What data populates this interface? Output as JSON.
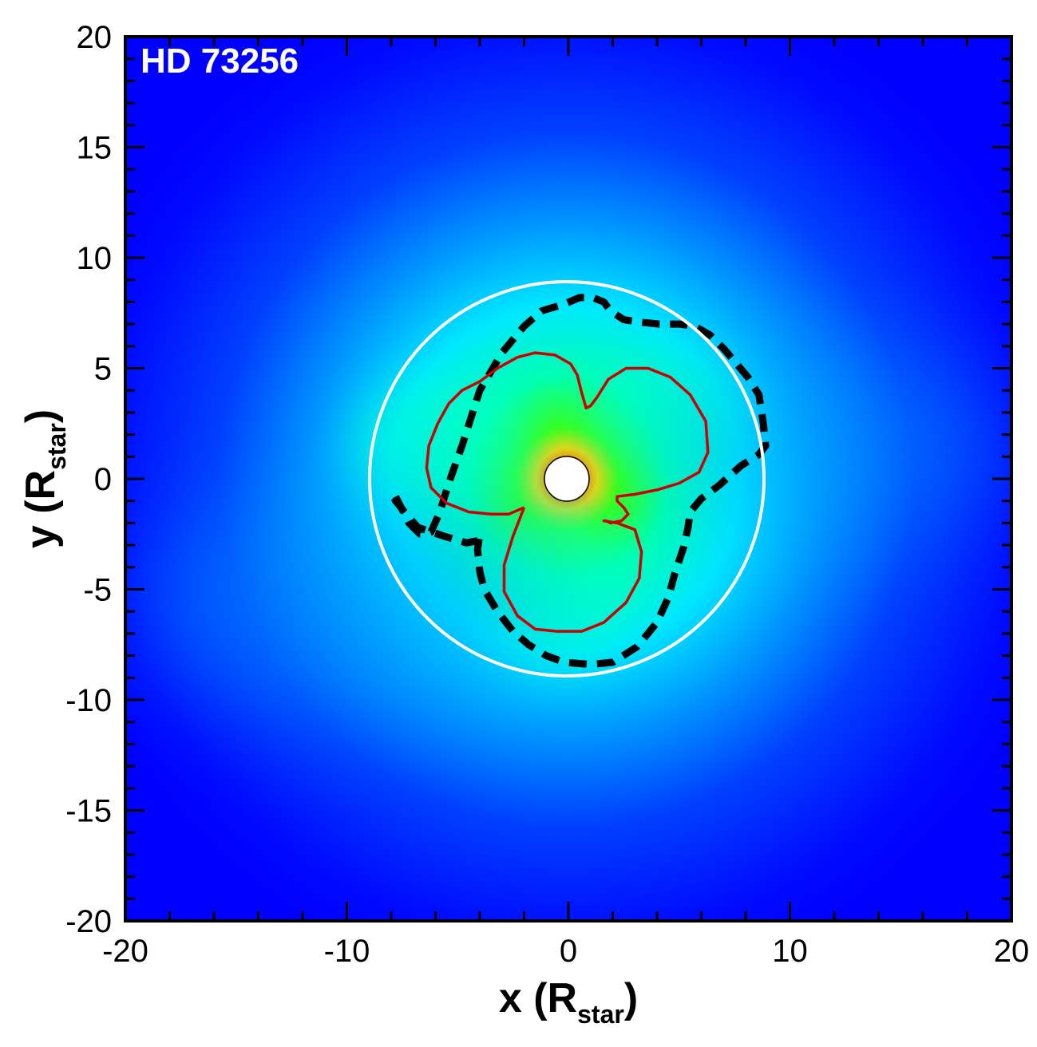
{
  "chart_data": {
    "type": "contour",
    "label": "HD 73256",
    "xlabel": {
      "main": "x (R",
      "sub": "star",
      "close": ")"
    },
    "ylabel": {
      "main": "y (R",
      "sub": "star",
      "close": ")"
    },
    "xlim": [
      -20,
      20
    ],
    "ylim": [
      -20,
      20
    ],
    "xticks": [
      -20,
      -10,
      0,
      10,
      20
    ],
    "yticks": [
      -20,
      -15,
      -10,
      -5,
      0,
      5,
      10,
      15,
      20
    ],
    "xtick_labels": [
      "-20",
      "-10",
      "0",
      "10",
      "20"
    ],
    "ytick_labels": [
      "-20",
      "-15",
      "-10",
      "-5",
      "0",
      "5",
      "10",
      "15",
      "20"
    ],
    "star_radius": 1,
    "planet_orbit_radius": 8.9,
    "colormap": [
      "#0000ff",
      "#00ffff",
      "#00ff00",
      "#ffff00",
      "#ff0000"
    ],
    "series": [
      {
        "style": "dashed",
        "color": "#000000",
        "x": [
          -7.8,
          -7.2,
          -6.8,
          -6.7,
          -6.5,
          -6.2,
          -5.8,
          -5.4,
          -4.8,
          -4.0,
          -3.0,
          -2.0,
          -1.2,
          -0.2,
          0.5,
          1.1,
          1.6,
          1.9,
          2.5,
          3.1,
          4.1,
          5.0,
          5.7,
          6.4,
          7.0,
          7.6,
          8.1,
          8.6,
          8.8,
          8.9,
          8.6,
          7.8,
          6.8,
          6.0,
          5.5,
          5.4,
          5.2,
          4.8,
          4.5,
          4.0,
          3.1,
          2.0,
          1.0,
          -0.2,
          -1.0,
          -1.8,
          -2.5,
          -3.2,
          -3.8,
          -4.0,
          -4.1,
          -4.0,
          -4.1,
          -4.6,
          -5.6,
          -6.8,
          -7.4,
          -7.8,
          -7.9,
          -7.8
        ],
        "y": [
          -0.8,
          -2.0,
          -2.4,
          -2.5,
          -2.5,
          -2.4,
          -1.5,
          -0.2,
          1.5,
          4.0,
          5.7,
          6.9,
          7.6,
          7.9,
          8.2,
          8.2,
          8.0,
          7.6,
          7.2,
          7.1,
          7.0,
          7.0,
          6.9,
          6.5,
          5.9,
          5.2,
          4.6,
          3.8,
          2.5,
          1.5,
          1.1,
          0.6,
          -0.3,
          -0.9,
          -1.5,
          -2.2,
          -3.1,
          -4.3,
          -5.4,
          -6.5,
          -7.6,
          -8.3,
          -8.4,
          -8.3,
          -8.0,
          -7.5,
          -6.9,
          -6.0,
          -5.0,
          -4.2,
          -3.2,
          -2.5,
          -2.8,
          -2.9,
          -2.6,
          -2.2,
          -1.5,
          -1.0,
          -0.8,
          -0.8
        ]
      },
      {
        "style": "solid",
        "color": "#cc0000",
        "x": [
          -2.0,
          -2.7,
          -3.5,
          -4.5,
          -5.5,
          -6.2,
          -6.4,
          -6.3,
          -5.9,
          -5.4,
          -4.8,
          -4.0,
          -3.2,
          -2.3,
          -1.5,
          -0.6,
          0.1,
          0.4,
          0.6,
          0.8,
          1.0,
          1.3,
          1.8,
          2.6,
          3.6,
          4.6,
          5.5,
          6.2,
          6.3,
          5.9,
          5.0,
          4.0,
          3.0,
          2.2,
          2.2,
          2.5,
          2.7,
          2.4,
          1.9,
          1.7,
          1.6,
          2.2,
          3.0,
          3.3,
          3.2,
          2.6,
          1.6,
          0.6,
          -0.5,
          -1.5,
          -2.3,
          -2.9,
          -2.9,
          -2.5,
          -2.0
        ],
        "y": [
          -1.3,
          -1.6,
          -1.6,
          -1.5,
          -1.1,
          -0.4,
          0.5,
          1.5,
          2.5,
          3.4,
          4.0,
          4.4,
          5.0,
          5.5,
          5.7,
          5.6,
          5.2,
          4.7,
          3.9,
          3.2,
          3.3,
          3.7,
          4.5,
          5.0,
          5.0,
          4.6,
          3.8,
          2.6,
          1.2,
          0.3,
          -0.2,
          -0.5,
          -0.7,
          -0.8,
          -1.0,
          -1.3,
          -1.6,
          -1.9,
          -2.0,
          -1.9,
          -1.9,
          -2.0,
          -2.3,
          -3.3,
          -4.5,
          -5.6,
          -6.5,
          -6.9,
          -6.9,
          -6.8,
          -6.2,
          -5.1,
          -3.9,
          -2.6,
          -1.3
        ]
      }
    ]
  }
}
